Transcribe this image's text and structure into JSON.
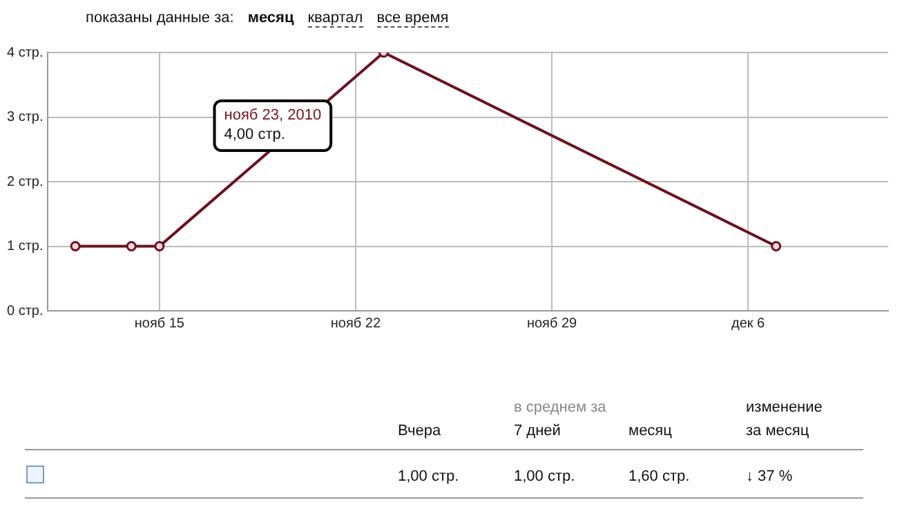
{
  "chart_data": {
    "type": "line",
    "title": "показаны данные за:",
    "x": [
      "2010-11-12",
      "2010-11-14",
      "2010-11-15",
      "2010-11-23",
      "2010-12-07"
    ],
    "series": [
      {
        "color": "#6e0f1e",
        "values": [
          1,
          1,
          1,
          4,
          1
        ]
      }
    ],
    "xlim": [
      "2010-11-11",
      "2010-12-11"
    ],
    "xticks": [
      {
        "value": "2010-11-15",
        "label": "нояб 15"
      },
      {
        "value": "2010-11-22",
        "label": "нояб 22"
      },
      {
        "value": "2010-11-29",
        "label": "нояб 29"
      },
      {
        "value": "2010-12-06",
        "label": "дек 6"
      }
    ],
    "ylim": [
      0,
      4
    ],
    "yticks": [
      {
        "value": 0,
        "label": "0 стр."
      },
      {
        "value": 1,
        "label": "1 стр."
      },
      {
        "value": 2,
        "label": "2 стр."
      },
      {
        "value": 3,
        "label": "3 стр."
      },
      {
        "value": 4,
        "label": "4 стр."
      }
    ],
    "grid": true,
    "legend": false,
    "marker": "circle",
    "line_style": "solid",
    "annotations": [
      "месяц",
      "квартал",
      "все время",
      "нояб 23, 2010\n4,00 стр.",
      "Вчера",
      "в среднем за\n7 дней",
      "месяц",
      "изменение\nза месяц",
      "1,00 стр.",
      "1,00 стр.",
      "1,60 стр.",
      "↓ 37 %"
    ]
  }
}
